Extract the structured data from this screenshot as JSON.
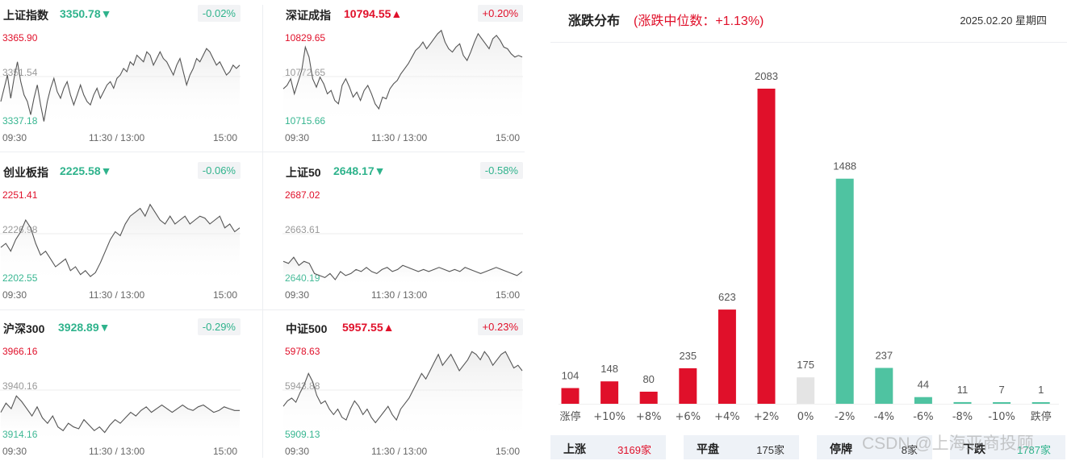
{
  "indices": [
    {
      "name": "上证指数",
      "price": "3350.78",
      "arrow": "▼",
      "change": "-0.02%",
      "dir": "down",
      "ymax": "3365.90",
      "ymid": "3351.54",
      "ymin": "3337.18",
      "series": [
        3344,
        3348,
        3352,
        3345,
        3351,
        3356,
        3350,
        3346,
        3344,
        3340,
        3345,
        3349,
        3343,
        3338,
        3344,
        3348,
        3351,
        3347,
        3345,
        3348,
        3350,
        3346,
        3343,
        3346,
        3349,
        3346,
        3344,
        3343,
        3346,
        3348,
        3345,
        3347,
        3349,
        3350,
        3348,
        3351,
        3352,
        3354,
        3353,
        3356,
        3355,
        3358,
        3357,
        3356,
        3359,
        3358,
        3355,
        3357,
        3359,
        3357,
        3356,
        3354,
        3352,
        3355,
        3357,
        3353,
        3349,
        3352,
        3354,
        3357,
        3356,
        3358,
        3360,
        3359,
        3357,
        3355,
        3356,
        3354,
        3352,
        3353,
        3355,
        3354,
        3355
      ]
    },
    {
      "name": "深证成指",
      "price": "10794.55",
      "arrow": "▲",
      "change": "+0.20%",
      "dir": "up",
      "ymax": "10829.65",
      "ymid": "10772.65",
      "ymin": "10715.66",
      "series": [
        10758,
        10762,
        10770,
        10752,
        10766,
        10780,
        10808,
        10796,
        10770,
        10760,
        10772,
        10764,
        10752,
        10756,
        10744,
        10740,
        10762,
        10770,
        10760,
        10748,
        10754,
        10744,
        10756,
        10762,
        10752,
        10740,
        10734,
        10748,
        10746,
        10758,
        10764,
        10768,
        10776,
        10782,
        10788,
        10796,
        10804,
        10808,
        10814,
        10806,
        10812,
        10818,
        10824,
        10828,
        10814,
        10806,
        10802,
        10808,
        10812,
        10798,
        10792,
        10802,
        10814,
        10824,
        10818,
        10812,
        10806,
        10818,
        10822,
        10816,
        10808,
        10806,
        10800,
        10796,
        10798,
        10796
      ]
    },
    {
      "name": "创业板指",
      "price": "2225.58",
      "arrow": "▼",
      "change": "-0.06%",
      "dir": "down",
      "ymax": "2251.41",
      "ymid": "2226.98",
      "ymin": "2202.55",
      "series": [
        2220,
        2222,
        2218,
        2224,
        2228,
        2234,
        2230,
        2222,
        2216,
        2218,
        2214,
        2210,
        2212,
        2214,
        2208,
        2210,
        2206,
        2208,
        2205,
        2207,
        2212,
        2218,
        2224,
        2228,
        2226,
        2232,
        2236,
        2238,
        2240,
        2236,
        2242,
        2238,
        2234,
        2232,
        2236,
        2232,
        2234,
        2236,
        2232,
        2234,
        2236,
        2235,
        2232,
        2234,
        2236,
        2230,
        2232,
        2228,
        2230
      ]
    },
    {
      "name": "上证50",
      "price": "2648.17",
      "arrow": "▼",
      "change": "-0.58%",
      "dir": "down",
      "ymax": "2687.02",
      "ymid": "2663.61",
      "ymin": "2640.19",
      "series": [
        2650,
        2649,
        2652,
        2648,
        2650,
        2649,
        2644,
        2643,
        2642,
        2644,
        2641,
        2645,
        2643,
        2644,
        2646,
        2645,
        2647,
        2645,
        2644,
        2646,
        2647,
        2645,
        2646,
        2648,
        2647,
        2646,
        2645,
        2646,
        2645,
        2646,
        2647,
        2646,
        2645,
        2646,
        2645,
        2647,
        2646,
        2645,
        2644,
        2645,
        2646,
        2647,
        2646,
        2645,
        2644,
        2643,
        2645
      ]
    },
    {
      "name": "沪深300",
      "price": "3928.89",
      "arrow": "▼",
      "change": "-0.29%",
      "dir": "down",
      "ymax": "3966.16",
      "ymid": "3940.16",
      "ymin": "3914.16",
      "series": [
        3928,
        3933,
        3930,
        3937,
        3934,
        3930,
        3926,
        3931,
        3925,
        3922,
        3926,
        3920,
        3918,
        3922,
        3920,
        3919,
        3924,
        3921,
        3918,
        3920,
        3917,
        3921,
        3924,
        3922,
        3925,
        3928,
        3926,
        3929,
        3931,
        3928,
        3930,
        3932,
        3930,
        3928,
        3930,
        3932,
        3930,
        3929,
        3931,
        3932,
        3930,
        3928,
        3929,
        3931,
        3930,
        3929,
        3929
      ]
    },
    {
      "name": "中证500",
      "price": "5957.55",
      "arrow": "▲",
      "change": "+0.23%",
      "dir": "up",
      "ymax": "5978.63",
      "ymid": "5943.88",
      "ymin": "5909.13",
      "series": [
        5932,
        5936,
        5938,
        5935,
        5942,
        5948,
        5956,
        5950,
        5940,
        5934,
        5936,
        5930,
        5926,
        5930,
        5924,
        5922,
        5930,
        5936,
        5932,
        5926,
        5930,
        5924,
        5920,
        5924,
        5928,
        5932,
        5926,
        5922,
        5930,
        5934,
        5938,
        5944,
        5950,
        5956,
        5952,
        5958,
        5964,
        5970,
        5962,
        5966,
        5970,
        5964,
        5958,
        5962,
        5966,
        5972,
        5970,
        5966,
        5972,
        5968,
        5962,
        5966,
        5970,
        5972,
        5966,
        5960,
        5962,
        5958
      ]
    }
  ],
  "time_labels": [
    "09:30",
    "11:30 / 13:00",
    "15:00"
  ],
  "distribution": {
    "title": "涨跌分布",
    "median": "(涨跌中位数：+1.13%)",
    "date": "2025.02.20 星期四",
    "chart_data": {
      "type": "bar",
      "categories": [
        "涨停",
        "+10%",
        "+8%",
        "+6%",
        "+4%",
        "+2%",
        "0%",
        "-2%",
        "-4%",
        "-6%",
        "-8%",
        "-10%",
        "跌停"
      ],
      "values": [
        104,
        148,
        80,
        235,
        623,
        2083,
        175,
        1488,
        237,
        44,
        11,
        7,
        1
      ],
      "bar_colors": [
        "#e0102a",
        "#e0102a",
        "#e0102a",
        "#e0102a",
        "#e0102a",
        "#e0102a",
        "#e4e4e4",
        "#4fc3a1",
        "#4fc3a1",
        "#4fc3a1",
        "#4fc3a1",
        "#4fc3a1",
        "#4fc3a1"
      ]
    },
    "stats": [
      {
        "label": "上涨",
        "value": "3169家",
        "color": "#e0102a"
      },
      {
        "label": "平盘",
        "value": "175家",
        "color": "#333333"
      },
      {
        "label": "停牌",
        "value": "8家",
        "color": "#333333"
      },
      {
        "label": "下跌",
        "value": "1787家",
        "color": "#2fb38c"
      }
    ]
  },
  "watermark": "CSDN @上海亚商投顾",
  "colors": {
    "up": "#e0102a",
    "down": "#2fb38c",
    "line": "#555555"
  }
}
